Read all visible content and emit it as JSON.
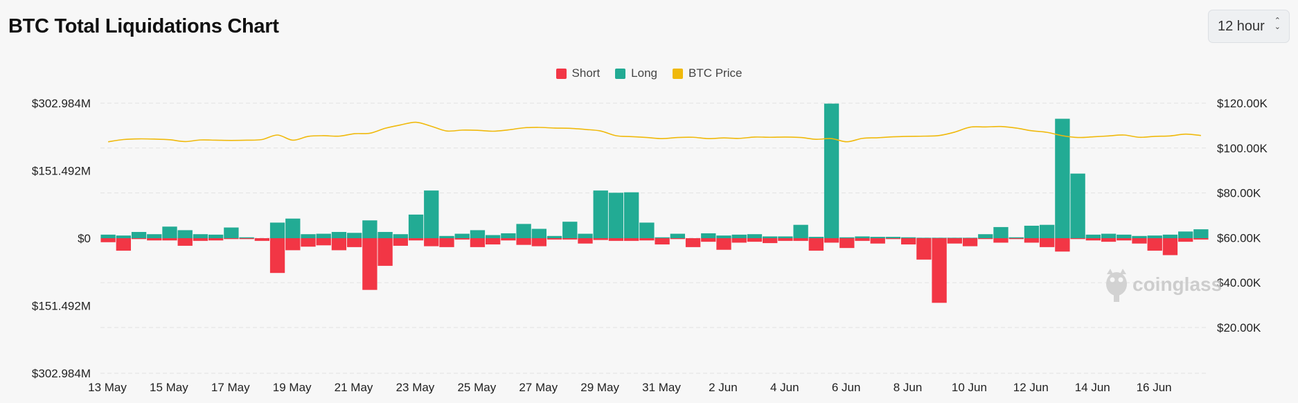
{
  "header": {
    "title": "BTC Total Liquidations Chart",
    "interval_label": "12 hour"
  },
  "legend": [
    {
      "label": "Short",
      "color": "#f23645"
    },
    {
      "label": "Long",
      "color": "#22ab94"
    },
    {
      "label": "BTC Price",
      "color": "#f0b90b"
    }
  ],
  "watermark": "coinglass",
  "chart_data": {
    "type": "bar",
    "title": "BTC Total Liquidations Chart",
    "interval": "12 hour",
    "x_tick_labels": [
      "13 May",
      "15 May",
      "17 May",
      "19 May",
      "21 May",
      "23 May",
      "25 May",
      "27 May",
      "29 May",
      "31 May",
      "2 Jun",
      "4 Jun",
      "6 Jun",
      "8 Jun",
      "10 Jun",
      "12 Jun",
      "14 Jun",
      "16 Jun"
    ],
    "left_axis": {
      "tick_labels": [
        "$302.984M",
        "$151.492M",
        "$0",
        "$151.492M",
        "$302.984M"
      ],
      "range_millions": [
        -302.984,
        302.984
      ]
    },
    "right_axis": {
      "tick_labels": [
        "$120.00K",
        "$100.00K",
        "$80.00K",
        "$60.00K",
        "$40.00K",
        "$20.00K"
      ],
      "range_thousands_usd": [
        0,
        120
      ]
    },
    "x_date_range": [
      "13 May",
      "17 Jun"
    ],
    "bar_interval_hours": 12,
    "grid": "horizontal dashed",
    "legend_position": "top-center",
    "series": [
      {
        "name": "Long",
        "color": "#22ab94",
        "unit": "USD millions",
        "values": [
          8,
          6,
          14,
          9,
          26,
          18,
          9,
          8,
          24,
          2,
          0,
          35,
          44,
          9,
          10,
          14,
          12,
          40,
          14,
          9,
          53,
          107,
          5,
          10,
          18,
          7,
          11,
          32,
          21,
          5,
          37,
          10,
          107,
          102,
          103,
          35,
          2,
          10,
          0,
          11,
          6,
          8,
          9,
          4,
          4,
          30,
          3,
          302,
          2,
          4,
          3,
          3,
          2,
          1,
          1,
          1,
          1,
          9,
          25,
          2,
          28,
          30,
          268,
          145,
          8,
          10,
          8,
          5,
          6,
          8,
          15,
          20
        ]
      },
      {
        "name": "Short",
        "color": "#f23645",
        "unit": "USD millions",
        "values": [
          -9,
          -28,
          -2,
          -5,
          -5,
          -17,
          -6,
          -5,
          -2,
          -2,
          -6,
          -78,
          -27,
          -19,
          -16,
          -27,
          -20,
          -116,
          -62,
          -17,
          -5,
          -18,
          -20,
          -3,
          -20,
          -14,
          -5,
          -15,
          -18,
          -3,
          -3,
          -12,
          -4,
          -6,
          -6,
          -5,
          -14,
          -2,
          -20,
          -8,
          -26,
          -10,
          -8,
          -11,
          -6,
          -6,
          -28,
          -10,
          -22,
          -6,
          -12,
          -2,
          -14,
          -48,
          -145,
          -12,
          -18,
          -2,
          -10,
          -2,
          -10,
          -20,
          -30,
          -2,
          -5,
          -8,
          -5,
          -12,
          -28,
          -38,
          -8,
          -3
        ]
      },
      {
        "name": "BTC Price",
        "color": "#f0b90b",
        "unit": "USD thousands",
        "values": [
          102.8,
          103.8,
          104.1,
          104.0,
          103.7,
          102.9,
          103.6,
          103.5,
          103.4,
          103.5,
          103.8,
          105.8,
          103.5,
          105.2,
          105.5,
          105.3,
          106.4,
          106.6,
          108.8,
          110.3,
          111.5,
          109.7,
          107.6,
          108.0,
          107.9,
          107.5,
          108.1,
          109.0,
          109.2,
          108.9,
          108.8,
          108.3,
          107.6,
          105.5,
          105.1,
          104.7,
          104.2,
          104.7,
          104.8,
          104.2,
          104.5,
          104.3,
          104.9,
          104.8,
          104.9,
          104.7,
          103.9,
          104.2,
          102.8,
          104.3,
          104.6,
          105.0,
          105.2,
          105.3,
          105.6,
          107.1,
          109.3,
          109.4,
          109.6,
          108.9,
          107.7,
          107.0,
          105.5,
          104.7,
          105.0,
          105.4,
          105.8,
          104.8,
          105.2,
          105.4,
          106.2,
          105.6
        ]
      }
    ]
  }
}
